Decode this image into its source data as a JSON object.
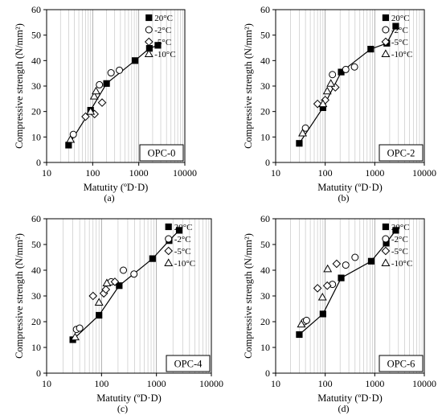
{
  "legend_series": [
    "20°C",
    "-2°C",
    "-5°C",
    "-10°C"
  ],
  "chart_data": [
    {
      "type": "scatter",
      "panel_label": "(a)",
      "tag": "OPC-0",
      "xlabel": "Matutity (ºD·D)",
      "ylabel": "Compressive strength (N/mm²)",
      "xscale": "log",
      "xlim": [
        10,
        10000
      ],
      "ylim": [
        0,
        60
      ],
      "xticks": [
        10,
        100,
        1000,
        10000
      ],
      "xtick_labels": [
        "10",
        "100",
        "1000",
        "10000"
      ],
      "yticks": [
        0,
        10,
        20,
        30,
        40,
        50,
        60
      ],
      "ytick_labels": [
        "0",
        "10",
        "20",
        "30",
        "40",
        "50",
        "60"
      ],
      "grid": "vertical minor log",
      "legend_position": "top-right",
      "series": [
        {
          "name": "20°C",
          "marker": "square-filled",
          "line": true,
          "x": [
            30,
            90,
            200,
            830,
            1700,
            2600
          ],
          "y": [
            6.8,
            20.5,
            31,
            40,
            44.8,
            46
          ]
        },
        {
          "name": "-2°C",
          "marker": "circle-open",
          "line": false,
          "x": [
            38,
            140,
            250,
            380
          ],
          "y": [
            11,
            30.5,
            35.2,
            36.2
          ]
        },
        {
          "name": "-5°C",
          "marker": "diamond-open",
          "line": false,
          "x": [
            70,
            110,
            160
          ],
          "y": [
            18,
            19,
            23.5
          ]
        },
        {
          "name": "-10°C",
          "marker": "triangle-open",
          "line": false,
          "x": [
            33,
            90,
            108,
            118
          ],
          "y": [
            9,
            20,
            26,
            28
          ]
        }
      ]
    },
    {
      "type": "scatter",
      "panel_label": "(b)",
      "tag": "OPC-2",
      "xlabel": "Matutity (ºD·D)",
      "ylabel": "Compressive strength (N/mm²)",
      "xscale": "log",
      "xlim": [
        10,
        10000
      ],
      "ylim": [
        0,
        60
      ],
      "xticks": [
        10,
        100,
        1000,
        10000
      ],
      "xtick_labels": [
        "10",
        "100",
        "1000",
        "10000"
      ],
      "yticks": [
        0,
        10,
        20,
        30,
        40,
        50,
        60
      ],
      "ytick_labels": [
        "0",
        "10",
        "20",
        "30",
        "40",
        "50",
        "60"
      ],
      "grid": "vertical minor log",
      "legend_position": "top-right",
      "series": [
        {
          "name": "20°C",
          "marker": "square-filled",
          "line": true,
          "x": [
            30,
            90,
            210,
            830,
            1750,
            2650
          ],
          "y": [
            7.5,
            21.5,
            35.5,
            44.5,
            46.8,
            53.5
          ]
        },
        {
          "name": "-2°C",
          "marker": "circle-open",
          "line": false,
          "x": [
            40,
            140,
            260,
            390
          ],
          "y": [
            13.5,
            34.5,
            36.5,
            37.5
          ]
        },
        {
          "name": "-5°C",
          "marker": "diamond-open",
          "line": false,
          "x": [
            70,
            100,
            160
          ],
          "y": [
            23,
            24.5,
            29.5
          ]
        },
        {
          "name": "-10°C",
          "marker": "triangle-open",
          "line": false,
          "x": [
            35,
            90,
            110,
            130
          ],
          "y": [
            11.5,
            23,
            28,
            31
          ]
        }
      ]
    },
    {
      "type": "scatter",
      "panel_label": "(c)",
      "tag": "OPC-4",
      "xlabel": "Matutity (ºD·D)",
      "ylabel": "Compressive strength (N/mm²)",
      "xscale": "log",
      "xlim": [
        10,
        10000
      ],
      "ylim": [
        0,
        60
      ],
      "xticks": [
        10,
        100,
        1000,
        10000
      ],
      "xtick_labels": [
        "10",
        "100",
        "1000",
        "10000"
      ],
      "yticks": [
        0,
        10,
        20,
        30,
        40,
        50,
        60
      ],
      "ytick_labels": [
        "0",
        "10",
        "20",
        "30",
        "40",
        "50",
        "60"
      ],
      "grid": "vertical minor log",
      "legend_position": "top-right",
      "series": [
        {
          "name": "20°C",
          "marker": "square-filled",
          "line": true,
          "x": [
            30,
            90,
            210,
            850,
            1700,
            2600
          ],
          "y": [
            13,
            22.5,
            34,
            44.5,
            51.5,
            55.5
          ]
        },
        {
          "name": "-2°C",
          "marker": "circle-open",
          "line": false,
          "x": [
            35,
            40,
            150,
            250,
            390
          ],
          "y": [
            17,
            17.5,
            35.5,
            40,
            38.5
          ]
        },
        {
          "name": "-5°C",
          "marker": "diamond-open",
          "line": false,
          "x": [
            70,
            110,
            120,
            175
          ],
          "y": [
            30,
            31,
            32.5,
            35.5
          ]
        },
        {
          "name": "-10°C",
          "marker": "triangle-open",
          "line": false,
          "x": [
            33,
            90,
            125
          ],
          "y": [
            14,
            27.5,
            35
          ]
        }
      ]
    },
    {
      "type": "scatter",
      "panel_label": "(d)",
      "tag": "OPC-6",
      "xlabel": "Matutity (ºD·D)",
      "ylabel": "Compressive strength (N/mm²)",
      "xscale": "log",
      "xlim": [
        10,
        10000
      ],
      "ylim": [
        0,
        60
      ],
      "xticks": [
        10,
        100,
        1000,
        10000
      ],
      "xtick_labels": [
        "10",
        "100",
        "1000",
        "10000"
      ],
      "yticks": [
        0,
        10,
        20,
        30,
        40,
        50,
        60
      ],
      "ytick_labels": [
        "0",
        "10",
        "20",
        "30",
        "40",
        "50",
        "60"
      ],
      "grid": "vertical minor log",
      "legend_position": "top-right",
      "series": [
        {
          "name": "20°C",
          "marker": "square-filled",
          "line": true,
          "x": [
            30,
            90,
            210,
            850,
            1700,
            2650
          ],
          "y": [
            15,
            23,
            37,
            43.5,
            50.5,
            55.5
          ]
        },
        {
          "name": "-2°C",
          "marker": "circle-open",
          "line": false,
          "x": [
            38,
            42,
            140,
            260,
            400
          ],
          "y": [
            20,
            20.5,
            34.5,
            42,
            45
          ]
        },
        {
          "name": "-5°C",
          "marker": "diamond-open",
          "line": false,
          "x": [
            70,
            110,
            170
          ],
          "y": [
            33,
            34,
            42.5
          ]
        },
        {
          "name": "-10°C",
          "marker": "triangle-open",
          "line": false,
          "x": [
            33,
            88,
            112
          ],
          "y": [
            19,
            29.5,
            40.5
          ]
        }
      ]
    }
  ]
}
